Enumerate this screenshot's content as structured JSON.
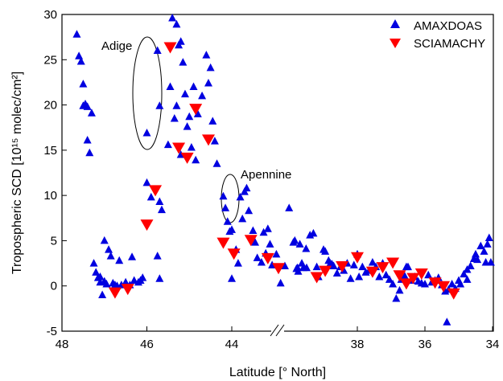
{
  "chart_data": {
    "type": "scatter",
    "xlabel": "Latitude [° North]",
    "ylabel": "Tropospheric SCD [10¹⁵ molec/cm²]",
    "ylim": [
      -5,
      30
    ],
    "yticks": [
      "-5",
      "0",
      "5",
      "10",
      "15",
      "20",
      "25",
      "30"
    ],
    "xticks": [
      "48",
      "46",
      "44",
      "38",
      "36",
      "34"
    ],
    "x_axis_break": "between 42 and 40 (double-slash break marker)",
    "legend": "top-right",
    "grid": false,
    "series": [
      {
        "name": "AMAXDOAS",
        "marker": "triangle-up",
        "color": "#0000e0",
        "points": [
          [
            47.65,
            27.8
          ],
          [
            47.6,
            25.4
          ],
          [
            47.55,
            24.8
          ],
          [
            47.5,
            22.3
          ],
          [
            47.5,
            19.9
          ],
          [
            47.45,
            20.1
          ],
          [
            47.4,
            19.8
          ],
          [
            47.4,
            16.1
          ],
          [
            47.35,
            14.7
          ],
          [
            47.3,
            19.1
          ],
          [
            47.25,
            2.5
          ],
          [
            47.2,
            1.5
          ],
          [
            47.15,
            0.9
          ],
          [
            47.1,
            0.4
          ],
          [
            47.1,
            1.0
          ],
          [
            47.05,
            -1.0
          ],
          [
            47.0,
            0.5
          ],
          [
            47.0,
            5.0
          ],
          [
            46.95,
            0.2
          ],
          [
            46.9,
            4.0
          ],
          [
            46.85,
            3.3
          ],
          [
            46.8,
            0.3
          ],
          [
            46.75,
            0.1
          ],
          [
            46.7,
            0.0
          ],
          [
            46.65,
            2.8
          ],
          [
            46.6,
            0.1
          ],
          [
            46.5,
            0.4
          ],
          [
            46.4,
            0.1
          ],
          [
            46.35,
            3.2
          ],
          [
            46.3,
            0.6
          ],
          [
            46.2,
            0.4
          ],
          [
            46.15,
            0.6
          ],
          [
            46.1,
            0.9
          ],
          [
            46.0,
            11.4
          ],
          [
            45.9,
            9.8
          ],
          [
            45.75,
            3.3
          ],
          [
            45.7,
            0.8
          ],
          [
            45.7,
            9.3
          ],
          [
            45.65,
            8.4
          ],
          [
            46.0,
            16.9
          ],
          [
            45.75,
            26.0
          ],
          [
            45.7,
            19.9
          ],
          [
            45.4,
            29.6
          ],
          [
            45.3,
            28.9
          ],
          [
            45.25,
            26.6
          ],
          [
            45.2,
            27.0
          ],
          [
            45.15,
            24.7
          ],
          [
            45.1,
            21.2
          ],
          [
            45.05,
            17.6
          ],
          [
            45.0,
            18.7
          ],
          [
            44.95,
            15.3
          ],
          [
            44.9,
            22.0
          ],
          [
            44.85,
            13.9
          ],
          [
            44.8,
            19.0
          ],
          [
            44.7,
            21.0
          ],
          [
            44.6,
            25.5
          ],
          [
            44.5,
            24.1
          ],
          [
            44.45,
            18.2
          ],
          [
            44.4,
            16.0
          ],
          [
            44.35,
            13.5
          ],
          [
            44.55,
            22.4
          ],
          [
            45.35,
            18.5
          ],
          [
            45.5,
            15.6
          ],
          [
            45.45,
            22.0
          ],
          [
            45.3,
            19.9
          ],
          [
            45.2,
            14.5
          ],
          [
            44.2,
            9.9
          ],
          [
            44.15,
            8.6
          ],
          [
            44.1,
            7.1
          ],
          [
            44.05,
            6.0
          ],
          [
            44.0,
            0.8
          ],
          [
            44.0,
            6.2
          ],
          [
            43.9,
            4.0
          ],
          [
            43.85,
            2.5
          ],
          [
            43.8,
            9.8
          ],
          [
            43.75,
            7.4
          ],
          [
            43.7,
            10.4
          ],
          [
            43.65,
            10.8
          ],
          [
            43.6,
            8.3
          ],
          [
            43.5,
            6.1
          ],
          [
            43.45,
            4.8
          ],
          [
            43.4,
            3.1
          ],
          [
            43.3,
            2.6
          ],
          [
            43.25,
            5.9
          ],
          [
            43.2,
            3.6
          ],
          [
            43.1,
            4.6
          ],
          [
            43.05,
            2.3
          ],
          [
            42.95,
            3.5
          ],
          [
            42.85,
            0.3
          ],
          [
            42.75,
            2.2
          ],
          [
            42.65,
            8.6
          ],
          [
            42.55,
            4.8
          ],
          [
            42.45,
            2.0
          ],
          [
            42.35,
            2.5
          ],
          [
            42.25,
            4.1
          ],
          [
            43.15,
            6.3
          ],
          [
            39.85,
            5.0
          ],
          [
            39.8,
            1.9
          ],
          [
            39.75,
            1.6
          ],
          [
            39.7,
            4.6
          ],
          [
            39.6,
            2.0
          ],
          [
            39.5,
            2.0
          ],
          [
            39.4,
            5.6
          ],
          [
            39.3,
            5.8
          ],
          [
            39.2,
            2.1
          ],
          [
            39.15,
            1.0
          ],
          [
            39.0,
            4.0
          ],
          [
            38.95,
            3.8
          ],
          [
            38.85,
            2.8
          ],
          [
            38.75,
            2.4
          ],
          [
            38.7,
            2.2
          ],
          [
            38.6,
            1.4
          ],
          [
            38.5,
            2.1
          ],
          [
            38.4,
            1.7
          ],
          [
            38.3,
            2.5
          ],
          [
            38.2,
            0.8
          ],
          [
            38.1,
            2.3
          ],
          [
            38.0,
            3.5
          ],
          [
            37.95,
            1.0
          ],
          [
            37.85,
            2.1
          ],
          [
            37.75,
            1.5
          ],
          [
            37.65,
            1.7
          ],
          [
            37.55,
            2.6
          ],
          [
            37.45,
            2.1
          ],
          [
            37.35,
            1.0
          ],
          [
            37.25,
            2.5
          ],
          [
            37.15,
            1.2
          ],
          [
            37.05,
            0.7
          ],
          [
            36.95,
            0.2
          ],
          [
            36.85,
            -1.4
          ],
          [
            36.75,
            -0.5
          ],
          [
            36.7,
            0.7
          ],
          [
            36.6,
            1.1
          ],
          [
            36.5,
            2.1
          ],
          [
            36.4,
            0.6
          ],
          [
            36.3,
            1.0
          ],
          [
            36.2,
            0.5
          ],
          [
            36.1,
            0.3
          ],
          [
            36.0,
            0.2
          ],
          [
            35.9,
            1.2
          ],
          [
            35.8,
            0.4
          ],
          [
            35.7,
            0.6
          ],
          [
            35.6,
            0.9
          ],
          [
            35.5,
            0.1
          ],
          [
            35.4,
            -0.6
          ],
          [
            35.35,
            -4.0
          ],
          [
            35.3,
            -0.4
          ],
          [
            35.2,
            0.2
          ],
          [
            35.1,
            -0.3
          ],
          [
            35.0,
            0.6
          ],
          [
            34.95,
            0.2
          ],
          [
            34.85,
            1.3
          ],
          [
            34.75,
            0.7
          ],
          [
            34.65,
            2.2
          ],
          [
            34.55,
            3.0
          ],
          [
            34.45,
            2.9
          ],
          [
            34.35,
            4.4
          ],
          [
            34.25,
            3.8
          ],
          [
            34.2,
            2.6
          ],
          [
            34.15,
            4.6
          ],
          [
            34.1,
            5.3
          ],
          [
            34.05,
            2.6
          ],
          [
            34.75,
            1.8
          ],
          [
            34.5,
            3.5
          ],
          [
            36.55,
            2.1
          ],
          [
            38.8,
            2.5
          ]
        ]
      },
      {
        "name": "SCIAMACHY",
        "marker": "triangle-down",
        "color": "#ff0000",
        "points": [
          [
            46.75,
            -0.7
          ],
          [
            46.45,
            -0.3
          ],
          [
            46.0,
            6.8
          ],
          [
            45.8,
            10.6
          ],
          [
            45.45,
            26.4
          ],
          [
            45.25,
            15.3
          ],
          [
            45.05,
            14.2
          ],
          [
            44.85,
            19.6
          ],
          [
            44.55,
            16.2
          ],
          [
            44.2,
            4.8
          ],
          [
            43.95,
            3.6
          ],
          [
            43.55,
            5.1
          ],
          [
            43.15,
            3.1
          ],
          [
            42.9,
            2.0
          ],
          [
            39.2,
            1.0
          ],
          [
            38.95,
            1.7
          ],
          [
            38.45,
            2.2
          ],
          [
            38.0,
            3.2
          ],
          [
            37.55,
            1.6
          ],
          [
            37.25,
            2.1
          ],
          [
            36.95,
            2.6
          ],
          [
            36.75,
            1.2
          ],
          [
            36.55,
            0.3
          ],
          [
            36.35,
            0.9
          ],
          [
            36.1,
            1.4
          ],
          [
            35.7,
            0.4
          ],
          [
            35.45,
            0.0
          ],
          [
            35.15,
            -0.8
          ]
        ]
      }
    ],
    "annotations": [
      {
        "text": "Adige"
      },
      {
        "text": "Apennine"
      }
    ]
  }
}
